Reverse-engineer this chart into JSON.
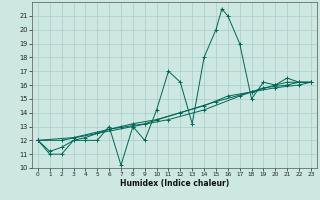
{
  "xlabel": "Humidex (Indice chaleur)",
  "bg_color": "#cce8e0",
  "grid_color": "#aacccc",
  "line_color": "#006655",
  "xlim": [
    -0.5,
    23.5
  ],
  "ylim": [
    10,
    22
  ],
  "yticks": [
    10,
    11,
    12,
    13,
    14,
    15,
    16,
    17,
    18,
    19,
    20,
    21
  ],
  "xticks": [
    0,
    1,
    2,
    3,
    4,
    5,
    6,
    7,
    8,
    9,
    10,
    11,
    12,
    13,
    14,
    15,
    16,
    17,
    18,
    19,
    20,
    21,
    22,
    23
  ],
  "series_volatile": [
    [
      0,
      12
    ],
    [
      1,
      11
    ],
    [
      2,
      11
    ],
    [
      3,
      12
    ],
    [
      4,
      12
    ],
    [
      5,
      12
    ],
    [
      6,
      13
    ],
    [
      7,
      10.2
    ],
    [
      8,
      13
    ],
    [
      9,
      12
    ],
    [
      10,
      14.2
    ],
    [
      11,
      17
    ],
    [
      12,
      16.2
    ],
    [
      13,
      13.2
    ],
    [
      14,
      18
    ],
    [
      15,
      20
    ],
    [
      15.5,
      21.5
    ],
    [
      16,
      21
    ],
    [
      17,
      19
    ],
    [
      18,
      15
    ],
    [
      19,
      16.2
    ],
    [
      20,
      16
    ],
    [
      21,
      16.5
    ],
    [
      22,
      16.2
    ],
    [
      23,
      16.2
    ]
  ],
  "series_line1": [
    [
      0,
      12
    ],
    [
      1,
      11.2
    ],
    [
      2,
      11.5
    ],
    [
      3,
      12
    ],
    [
      4,
      12.2
    ],
    [
      5,
      12.5
    ],
    [
      6,
      12.8
    ],
    [
      7,
      13
    ],
    [
      8,
      13.2
    ],
    [
      10,
      13.5
    ],
    [
      12,
      14
    ],
    [
      14,
      14.5
    ],
    [
      16,
      15.2
    ],
    [
      18,
      15.5
    ],
    [
      20,
      16
    ],
    [
      21,
      16.2
    ],
    [
      22,
      16.2
    ],
    [
      23,
      16.2
    ]
  ],
  "series_line2": [
    [
      0,
      12
    ],
    [
      2,
      12
    ],
    [
      5,
      12.5
    ],
    [
      8,
      13
    ],
    [
      11,
      13.5
    ],
    [
      14,
      14.2
    ],
    [
      17,
      15.2
    ],
    [
      19,
      15.8
    ],
    [
      21,
      16
    ],
    [
      22,
      16.2
    ],
    [
      23,
      16.2
    ]
  ],
  "series_line3": [
    [
      0,
      12
    ],
    [
      3,
      12.2
    ],
    [
      6,
      12.8
    ],
    [
      9,
      13.2
    ],
    [
      12,
      14
    ],
    [
      15,
      14.8
    ],
    [
      18,
      15.5
    ],
    [
      20,
      15.8
    ],
    [
      22,
      16
    ],
    [
      23,
      16.2
    ]
  ]
}
